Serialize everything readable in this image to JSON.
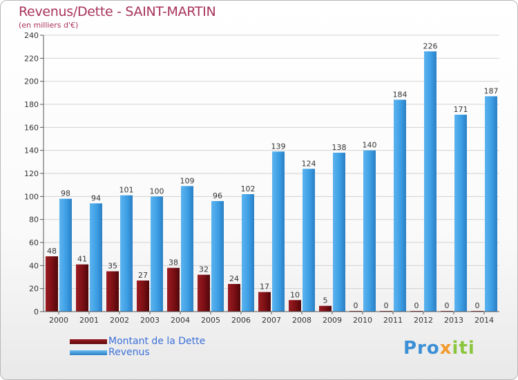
{
  "header": {
    "title": "Revenus/Dette - SAINT-MARTIN",
    "subtitle": "(en milliers d'€)"
  },
  "colors": {
    "dette": "#7a0f14",
    "revenus": "#3d9ee4",
    "title": "#a8325a",
    "legend_text": "#3b6fd8"
  },
  "legend": {
    "items": [
      {
        "label": "Montant de la Dette",
        "color": "#7a0f14"
      },
      {
        "label": "Revenus",
        "color": "#3d9ee4"
      }
    ]
  },
  "logo": {
    "text": "Proxiti",
    "parts": [
      "Pro",
      "x",
      "iti"
    ]
  },
  "chart_data": {
    "type": "bar",
    "title": "Revenus/Dette - SAINT-MARTIN",
    "subtitle": "(en milliers d'€)",
    "categories": [
      "2000",
      "2001",
      "2002",
      "2003",
      "2004",
      "2005",
      "2006",
      "2007",
      "2008",
      "2009",
      "2010",
      "2011",
      "2012",
      "2013",
      "2014"
    ],
    "series": [
      {
        "name": "Montant de la Dette",
        "values": [
          48,
          41,
          35,
          27,
          38,
          32,
          24,
          17,
          10,
          5,
          0,
          0,
          0,
          0,
          0
        ]
      },
      {
        "name": "Revenus",
        "values": [
          98,
          94,
          101,
          100,
          109,
          96,
          102,
          139,
          124,
          138,
          140,
          184,
          226,
          171,
          187
        ]
      }
    ],
    "yticks": [
      0,
      20,
      40,
      60,
      80,
      100,
      120,
      140,
      160,
      180,
      200,
      220,
      240
    ],
    "ylim": [
      0,
      240
    ],
    "grid": true,
    "legend_position": "bottom-left"
  }
}
